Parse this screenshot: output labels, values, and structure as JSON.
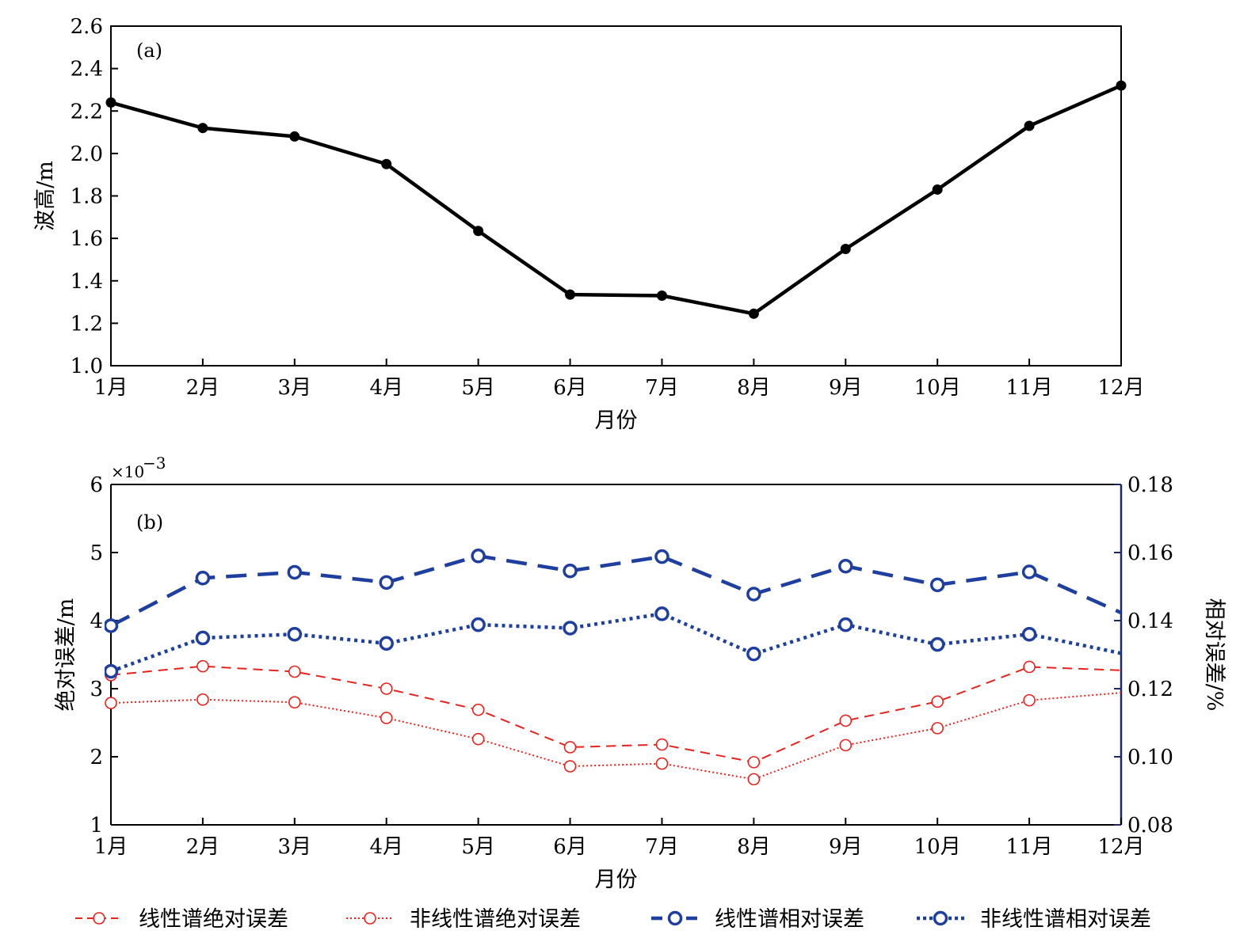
{
  "chart_data": [
    {
      "type": "line",
      "panel_label": "(a)",
      "categories": [
        "1月",
        "2月",
        "3月",
        "4月",
        "5月",
        "6月",
        "7月",
        "8月",
        "9月",
        "10月",
        "11月",
        "12月"
      ],
      "series": [
        {
          "name": "波高",
          "values": [
            2.24,
            2.12,
            2.08,
            1.95,
            1.635,
            1.335,
            1.33,
            1.245,
            1.55,
            1.83,
            2.13,
            2.32
          ],
          "color": "#000000"
        }
      ],
      "xlabel": "月份",
      "ylabel": "波高/m",
      "ylim": [
        1.0,
        2.6
      ],
      "yticks": [
        "1.0",
        "1.2",
        "1.4",
        "1.6",
        "1.8",
        "2.0",
        "2.2",
        "2.4",
        "2.6"
      ]
    },
    {
      "type": "line",
      "panel_label": "(b)",
      "categories": [
        "1月",
        "2月",
        "3月",
        "4月",
        "5月",
        "6月",
        "7月",
        "8月",
        "9月",
        "10月",
        "11月",
        "12月"
      ],
      "xlabel": "月份",
      "ylabel_left": "绝对误差/m",
      "ylabel_right": "相对误差/%",
      "left_exponent": "×10",
      "left_exponent_power": "−3",
      "ylim_left": [
        1,
        6
      ],
      "yticks_left": [
        "1",
        "2",
        "3",
        "4",
        "5",
        "6"
      ],
      "ylim_right": [
        0.08,
        0.18
      ],
      "yticks_right": [
        "0.08",
        "0.10",
        "0.12",
        "0.14",
        "0.16",
        "0.18"
      ],
      "series": [
        {
          "name": "线性谱绝对误差",
          "axis": "left",
          "style": "dashed",
          "color": "#e8231f",
          "values": [
            3.2,
            3.33,
            3.25,
            3.0,
            2.69,
            2.14,
            2.18,
            1.92,
            2.53,
            2.81,
            3.32,
            3.27
          ]
        },
        {
          "name": "非线性谱绝对误差",
          "axis": "left",
          "style": "dotted",
          "color": "#e8231f",
          "values": [
            2.79,
            2.84,
            2.8,
            2.57,
            2.26,
            1.86,
            1.9,
            1.67,
            2.17,
            2.42,
            2.83,
            2.94
          ]
        },
        {
          "name": "线性谱相对误差",
          "axis": "right",
          "style": "bold-dashed",
          "color": "#1f3fa0",
          "values": [
            0.1385,
            0.1525,
            0.1542,
            0.1512,
            0.159,
            0.1546,
            0.1588,
            0.1478,
            0.156,
            0.1505,
            0.1543,
            0.1423
          ]
        },
        {
          "name": "非线性谱相对误差",
          "axis": "right",
          "style": "bold-dotted",
          "color": "#1f3fa0",
          "values": [
            0.1251,
            0.1349,
            0.136,
            0.1333,
            0.1388,
            0.1378,
            0.142,
            0.1302,
            0.1388,
            0.133,
            0.136,
            0.1304
          ]
        }
      ]
    }
  ]
}
